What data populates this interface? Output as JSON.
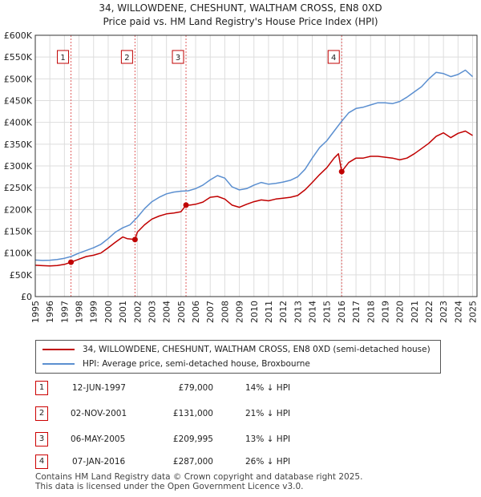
{
  "title_line1": "34, WILLOWDENE, CHESHUNT, WALTHAM CROSS, EN8 0XD",
  "title_line2": "Price paid vs. HM Land Registry's House Price Index (HPI)",
  "chart_data": {
    "type": "line",
    "ylabel": "",
    "xlabel": "",
    "ylim": [
      0,
      600000
    ],
    "xlim": [
      1995,
      2025.3
    ],
    "y_ticks": [
      0,
      50000,
      100000,
      150000,
      200000,
      250000,
      300000,
      350000,
      400000,
      450000,
      500000,
      550000,
      600000
    ],
    "y_tick_labels": [
      "£0",
      "£50K",
      "£100K",
      "£150K",
      "£200K",
      "£250K",
      "£300K",
      "£350K",
      "£400K",
      "£450K",
      "£500K",
      "£550K",
      "£600K"
    ],
    "x_ticks": [
      1995,
      1996,
      1997,
      1998,
      1999,
      2000,
      2001,
      2002,
      2003,
      2004,
      2005,
      2006,
      2007,
      2008,
      2009,
      2010,
      2011,
      2012,
      2013,
      2014,
      2015,
      2016,
      2017,
      2018,
      2019,
      2020,
      2021,
      2022,
      2023,
      2024,
      2025
    ],
    "grid": true,
    "series": [
      {
        "name": "34, WILLOWDENE, CHESHUNT, WALTHAM CROSS, EN8 0XD (semi-detached house)",
        "color": "#c00000",
        "x": [
          1995,
          1995.5,
          1996,
          1996.5,
          1997,
          1997.45,
          1998,
          1998.5,
          1999,
          1999.5,
          2000,
          2000.5,
          2001,
          2001.3,
          2001.84,
          2002,
          2002.5,
          2003,
          2003.5,
          2004,
          2004.5,
          2005,
          2005.34,
          2005.6,
          2006,
          2006.5,
          2007,
          2007.5,
          2008,
          2008.5,
          2009,
          2009.5,
          2010,
          2010.5,
          2011,
          2011.5,
          2012,
          2012.5,
          2013,
          2013.5,
          2014,
          2014.5,
          2015,
          2015.5,
          2015.8,
          2016.02,
          2016.5,
          2017,
          2017.5,
          2018,
          2018.5,
          2019,
          2019.5,
          2020,
          2020.5,
          2021,
          2021.5,
          2022,
          2022.5,
          2023,
          2023.5,
          2024,
          2024.5,
          2025
        ],
        "values": [
          72000,
          71000,
          70500,
          71500,
          74000,
          79000,
          86000,
          92000,
          95000,
          100000,
          112000,
          125000,
          137000,
          133000,
          131000,
          148000,
          165000,
          178000,
          185000,
          190000,
          192000,
          195000,
          209995,
          210000,
          212000,
          217000,
          228000,
          230000,
          224000,
          210000,
          205000,
          212000,
          218000,
          222000,
          220000,
          224000,
          226000,
          228000,
          232000,
          245000,
          262000,
          280000,
          296000,
          318000,
          328000,
          287000,
          308000,
          318000,
          318000,
          322000,
          322000,
          320000,
          318000,
          314000,
          318000,
          328000,
          340000,
          352000,
          368000,
          376000,
          365000,
          375000,
          380000,
          370000
        ]
      },
      {
        "name": "HPI: Average price, semi-detached house, Broxbourne",
        "color": "#5b8fd0",
        "x": [
          1995,
          1995.5,
          1996,
          1996.5,
          1997,
          1997.45,
          1998,
          1998.5,
          1999,
          1999.5,
          2000,
          2000.5,
          2001,
          2001.5,
          2002,
          2002.5,
          2003,
          2003.5,
          2004,
          2004.5,
          2005,
          2005.5,
          2006,
          2006.5,
          2007,
          2007.5,
          2008,
          2008.5,
          2009,
          2009.5,
          2010,
          2010.5,
          2011,
          2011.5,
          2012,
          2012.5,
          2013,
          2013.5,
          2014,
          2014.5,
          2015,
          2015.5,
          2016,
          2016.5,
          2017,
          2017.5,
          2018,
          2018.5,
          2019,
          2019.5,
          2020,
          2020.5,
          2021,
          2021.5,
          2022,
          2022.5,
          2023,
          2023.5,
          2024,
          2024.5,
          2025
        ],
        "values": [
          84000,
          83000,
          83500,
          85000,
          88000,
          92000,
          100000,
          106000,
          112000,
          120000,
          133000,
          148000,
          158000,
          165000,
          182000,
          202000,
          218000,
          228000,
          236000,
          240000,
          242000,
          243000,
          248000,
          256000,
          268000,
          278000,
          272000,
          252000,
          245000,
          248000,
          256000,
          262000,
          258000,
          260000,
          263000,
          267000,
          275000,
          292000,
          318000,
          342000,
          358000,
          380000,
          402000,
          422000,
          432000,
          435000,
          440000,
          445000,
          445000,
          443000,
          448000,
          458000,
          470000,
          482000,
          500000,
          515000,
          512000,
          505000,
          510000,
          520000,
          505000
        ]
      }
    ],
    "transactions": [
      {
        "label": "1",
        "date": "12-JUN-1997",
        "x": 1997.45,
        "price": 79000,
        "price_text": "£79,000",
        "delta": "14% ↓ HPI"
      },
      {
        "label": "2",
        "date": "02-NOV-2001",
        "x": 2001.84,
        "price": 131000,
        "price_text": "£131,000",
        "delta": "21% ↓ HPI"
      },
      {
        "label": "3",
        "date": "06-MAY-2005",
        "x": 2005.34,
        "price": 209995,
        "price_text": "£209,995",
        "delta": "13% ↓ HPI"
      },
      {
        "label": "4",
        "date": "07-JAN-2016",
        "x": 2016.02,
        "price": 287000,
        "price_text": "£287,000",
        "delta": "26% ↓ HPI"
      }
    ]
  },
  "legend": {
    "red_label": "34, WILLOWDENE, CHESHUNT, WALTHAM CROSS, EN8 0XD (semi-detached house)",
    "blue_label": "HPI: Average price, semi-detached house, Broxbourne"
  },
  "footer": {
    "line1": "Contains HM Land Registry data © Crown copyright and database right 2025.",
    "line2": "This data is licensed under the Open Government Licence v3.0."
  }
}
